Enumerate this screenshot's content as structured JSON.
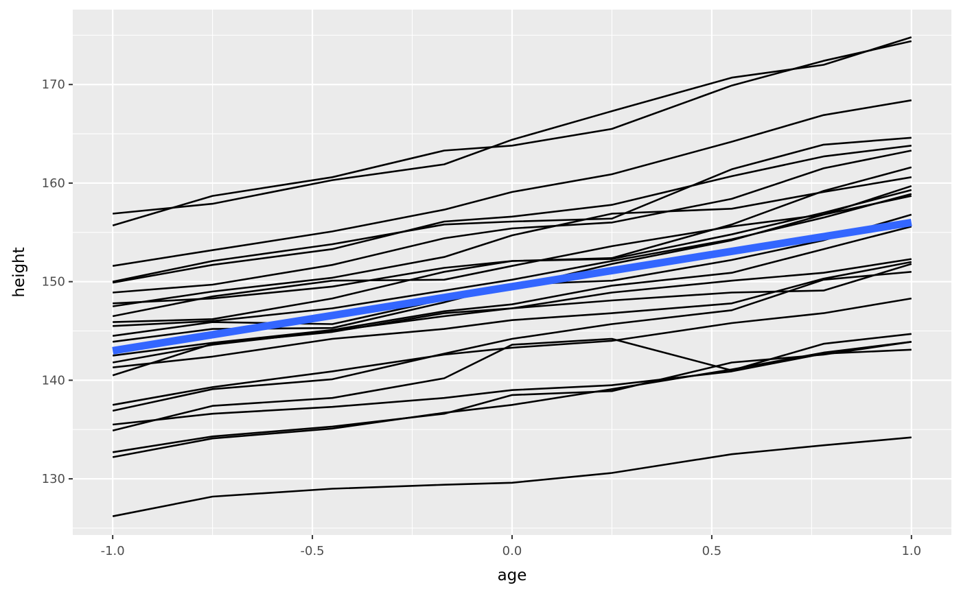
{
  "chart_data": {
    "type": "line",
    "title": "",
    "xlabel": "age",
    "ylabel": "height",
    "xlim": [
      -1.1,
      1.1
    ],
    "ylim": [
      124.3,
      177.6
    ],
    "x_ticks": [
      -1.0,
      -0.5,
      0.0,
      0.5,
      1.0
    ],
    "x_tick_labels": [
      "-1.0",
      "-0.5",
      "0.0",
      "0.5",
      "1.0"
    ],
    "y_ticks": [
      130,
      140,
      150,
      160,
      170
    ],
    "y_tick_labels": [
      "130",
      "140",
      "150",
      "160",
      "170"
    ],
    "grid": true,
    "legend": "none",
    "colors": {
      "panel": "#ebebeb",
      "grid_major": "#ffffff",
      "line": "#000000",
      "trend": "#3366ff"
    },
    "series": [
      {
        "x": [
          -1.0,
          -0.75,
          -0.45,
          -0.17,
          0.0,
          0.25,
          0.55,
          0.78,
          1.0
        ],
        "y": [
          156.9,
          157.9,
          160.3,
          161.9,
          164.4,
          167.3,
          170.7,
          172.0,
          174.8
        ]
      },
      {
        "x": [
          -1.0,
          -0.75,
          -0.45,
          -0.17,
          0.0,
          0.25,
          0.55,
          0.78,
          1.0
        ],
        "y": [
          155.7,
          158.7,
          160.6,
          163.3,
          163.8,
          165.5,
          169.9,
          172.4,
          174.4
        ]
      },
      {
        "x": [
          -1.0,
          -0.75,
          -0.45,
          -0.17,
          0.0,
          0.25,
          0.55,
          0.78,
          1.0
        ],
        "y": [
          151.6,
          153.2,
          155.1,
          157.3,
          159.1,
          160.9,
          164.2,
          166.9,
          168.4
        ]
      },
      {
        "x": [
          -1.0,
          -0.75,
          -0.45,
          -0.17,
          0.0,
          0.25,
          0.55,
          0.78,
          1.0
        ],
        "y": [
          150.0,
          152.1,
          153.8,
          155.8,
          156.1,
          156.4,
          161.4,
          163.9,
          164.6
        ]
      },
      {
        "x": [
          -1.0,
          -0.75,
          -0.45,
          -0.17,
          0.0,
          0.25,
          0.55,
          0.78,
          1.0
        ],
        "y": [
          149.9,
          151.7,
          153.3,
          156.1,
          156.6,
          157.8,
          160.7,
          162.7,
          163.8
        ]
      },
      {
        "x": [
          -1.0,
          -0.75,
          -0.45,
          -0.17,
          0.0,
          0.25,
          0.55,
          0.78,
          1.0
        ],
        "y": [
          148.9,
          149.7,
          151.7,
          154.4,
          155.4,
          156.0,
          158.4,
          161.5,
          163.3
        ]
      },
      {
        "x": [
          -1.0,
          -0.75,
          -0.45,
          -0.17,
          0.0,
          0.25,
          0.55,
          0.78,
          1.0
        ],
        "y": [
          147.8,
          148.3,
          149.5,
          151.4,
          152.1,
          152.4,
          155.8,
          159.2,
          161.6
        ]
      },
      {
        "x": [
          -1.0,
          -0.75,
          -0.45,
          -0.17,
          0.0,
          0.25,
          0.55,
          0.78,
          1.0
        ],
        "y": [
          147.5,
          149.0,
          150.4,
          152.5,
          154.7,
          156.9,
          157.4,
          159.1,
          160.6
        ]
      },
      {
        "x": [
          -1.0,
          -0.75,
          -0.45,
          -0.17,
          0.0,
          0.25,
          0.55,
          0.78,
          1.0
        ],
        "y": [
          146.5,
          148.5,
          150.1,
          150.2,
          151.6,
          153.6,
          155.6,
          156.8,
          159.7
        ]
      },
      {
        "x": [
          -1.0,
          -0.75,
          -0.45,
          -0.17,
          0.0,
          0.25,
          0.55,
          0.78,
          1.0
        ],
        "y": [
          145.9,
          146.2,
          148.3,
          151.0,
          152.1,
          152.3,
          154.8,
          157.0,
          159.3
        ]
      },
      {
        "x": [
          -1.0,
          -0.75,
          -0.45,
          -0.17,
          0.0,
          0.25,
          0.55,
          0.78,
          1.0
        ],
        "y": [
          145.5,
          146.0,
          147.3,
          149.1,
          150.2,
          152.1,
          154.3,
          156.5,
          158.9
        ]
      },
      {
        "x": [
          -1.0,
          -0.75,
          -0.45,
          -0.17,
          0.0,
          0.25,
          0.55,
          0.78,
          1.0
        ],
        "y": [
          144.5,
          145.9,
          145.7,
          148.2,
          149.4,
          151.8,
          154.2,
          156.8,
          158.7
        ]
      },
      {
        "x": [
          -1.0,
          -0.75,
          -0.45,
          -0.17,
          0.0,
          0.25,
          0.55,
          0.78,
          1.0
        ],
        "y": [
          143.9,
          145.2,
          145.3,
          147.9,
          149.7,
          150.1,
          152.2,
          154.2,
          156.8
        ]
      },
      {
        "x": [
          -1.0,
          -0.75,
          -0.45,
          -0.17,
          0.0,
          0.25,
          0.55,
          0.78,
          1.0
        ],
        "y": [
          142.5,
          143.8,
          145.1,
          147.0,
          147.7,
          149.6,
          150.9,
          153.3,
          155.6
        ]
      },
      {
        "x": [
          -1.0,
          -0.75,
          -0.45,
          -0.17,
          0.0,
          0.25,
          0.55,
          0.78,
          1.0
        ],
        "y": [
          141.8,
          143.6,
          145.0,
          146.5,
          147.3,
          148.9,
          150.1,
          150.9,
          152.3
        ]
      },
      {
        "x": [
          -1.0,
          -0.75,
          -0.45,
          -0.17,
          0.0,
          0.25,
          0.55,
          0.78,
          1.0
        ],
        "y": [
          141.3,
          142.4,
          144.2,
          145.2,
          146.1,
          146.8,
          147.8,
          150.3,
          152.0
        ]
      },
      {
        "x": [
          -1.0,
          -0.75,
          -0.45,
          -0.17,
          0.0,
          0.25,
          0.55,
          0.78,
          1.0
        ],
        "y": [
          140.5,
          143.7,
          144.9,
          146.8,
          147.3,
          148.1,
          148.9,
          149.1,
          151.8
        ]
      },
      {
        "x": [
          -1.0,
          -0.75,
          -0.45,
          -0.17,
          0.0,
          0.25,
          0.55,
          0.78,
          1.0
        ],
        "y": [
          137.5,
          139.3,
          140.9,
          142.6,
          143.3,
          144.0,
          145.8,
          146.8,
          148.3
        ]
      },
      {
        "x": [
          -1.0,
          -0.75,
          -0.45,
          -0.17,
          0.0,
          0.25,
          0.55,
          0.78,
          1.0
        ],
        "y": [
          136.9,
          139.1,
          140.1,
          142.7,
          144.2,
          145.7,
          147.1,
          150.2,
          151.0
        ]
      },
      {
        "x": [
          -1.0,
          -0.75,
          -0.45,
          -0.17,
          0.0,
          0.25,
          0.55,
          0.78,
          1.0
        ],
        "y": [
          134.9,
          137.4,
          138.2,
          140.2,
          143.6,
          144.2,
          141.0,
          143.7,
          144.7
        ]
      },
      {
        "x": [
          -1.0,
          -0.75,
          -0.45,
          -0.17,
          0.0,
          0.25,
          0.55,
          0.78,
          1.0
        ],
        "y": [
          135.5,
          136.6,
          137.3,
          138.2,
          139.0,
          139.5,
          140.9,
          142.7,
          143.1
        ]
      },
      {
        "x": [
          -1.0,
          -0.75,
          -0.45,
          -0.17,
          0.0,
          0.25,
          0.55,
          0.78,
          1.0
        ],
        "y": [
          132.7,
          134.3,
          135.3,
          136.6,
          138.5,
          138.9,
          141.8,
          142.6,
          143.9
        ]
      },
      {
        "x": [
          -1.0,
          -0.75,
          -0.45,
          -0.17,
          0.0,
          0.25,
          0.55,
          0.78,
          1.0
        ],
        "y": [
          132.2,
          134.1,
          135.1,
          136.7,
          137.5,
          139.1,
          141.1,
          142.8,
          143.9
        ]
      },
      {
        "x": [
          -1.0,
          -0.75,
          -0.45,
          -0.17,
          0.0,
          0.25,
          0.55,
          0.78,
          1.0
        ],
        "y": [
          126.2,
          128.2,
          129.0,
          129.4,
          129.6,
          130.6,
          132.5,
          133.4,
          134.2
        ]
      }
    ],
    "trend": {
      "x": [
        -1.0,
        1.0
      ],
      "y": [
        143.0,
        156.0
      ]
    }
  }
}
